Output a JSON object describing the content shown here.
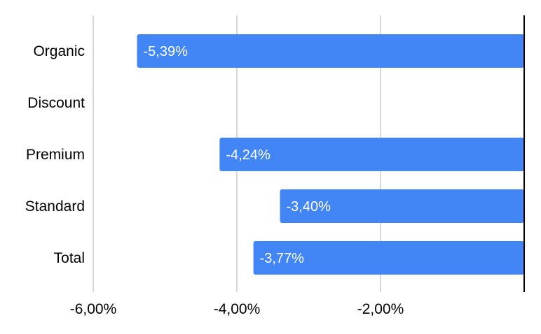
{
  "chart_data": {
    "type": "bar",
    "orientation": "horizontal",
    "categories": [
      "Organic",
      "Discount",
      "Premium",
      "Standard",
      "Total"
    ],
    "values": [
      -5.39,
      null,
      -4.24,
      -3.4,
      -3.77
    ],
    "data_labels": [
      "-5,39%",
      "",
      "-4,24%",
      "-3,40%",
      "-3,77%"
    ],
    "xlim": [
      -6,
      0
    ],
    "xticks": [
      -6,
      -4,
      -2
    ],
    "xtick_labels": [
      "-6,00%",
      "-4,00%",
      "-2,00%"
    ],
    "grid": true,
    "bar_color": "#4285f4",
    "gridline_color": "#cccccc",
    "zero_line_color": "#000000",
    "title": "",
    "xlabel": "",
    "ylabel": ""
  }
}
